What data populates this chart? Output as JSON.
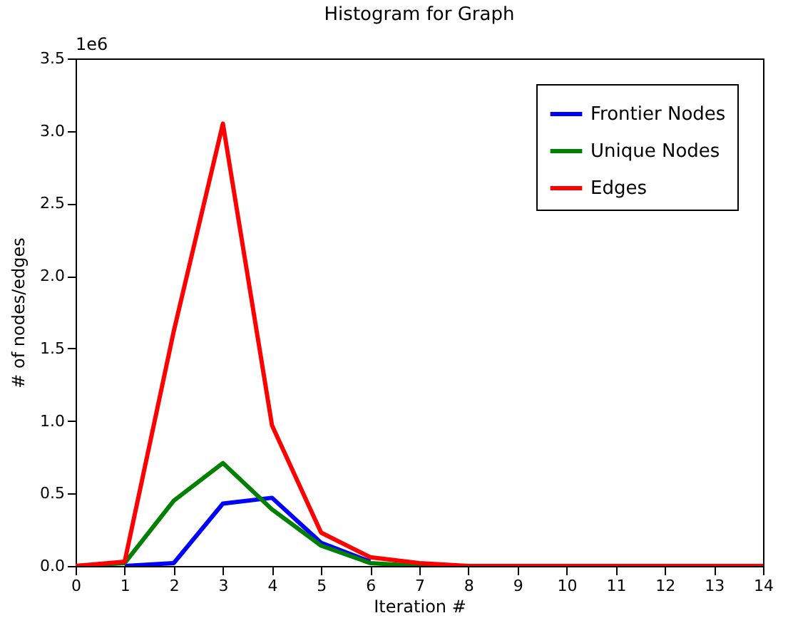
{
  "chart_data": {
    "type": "line",
    "title": "Histogram for Graph",
    "xlabel": "Iteration #",
    "ylabel": "# of nodes/edges",
    "annotations": [
      "1e6"
    ],
    "x": [
      0,
      1,
      2,
      3,
      4,
      5,
      6,
      7,
      8,
      9,
      10,
      11,
      12,
      13,
      14
    ],
    "series": [
      {
        "name": "Frontier Nodes",
        "color": "#0000ff",
        "values": [
          null,
          0,
          0.02,
          0.43,
          0.47,
          0.16,
          0.03,
          null,
          null,
          null,
          null,
          null,
          null,
          null,
          null
        ]
      },
      {
        "name": "Unique Nodes",
        "color": "#008000",
        "values": [
          0,
          0.02,
          0.45,
          0.71,
          0.39,
          0.14,
          0.02,
          0,
          0,
          null,
          null,
          null,
          null,
          null,
          null
        ]
      },
      {
        "name": "Edges",
        "color": "#ff0000",
        "values": [
          0,
          0.03,
          1.62,
          3.05,
          0.97,
          0.23,
          0.06,
          0.02,
          0,
          0,
          0,
          0,
          0,
          0,
          0
        ]
      }
    ],
    "xlim": [
      0,
      14
    ],
    "xticks": [
      0,
      1,
      2,
      3,
      4,
      5,
      6,
      7,
      8,
      9,
      10,
      11,
      12,
      13,
      14
    ],
    "ylim": [
      0,
      3.5
    ],
    "yticks": [
      {
        "value": 0,
        "label": "0.0"
      },
      {
        "value": 0.5,
        "label": "0.5"
      },
      {
        "value": 1,
        "label": "1.0"
      },
      {
        "value": 1.5,
        "label": "1.5"
      },
      {
        "value": 2,
        "label": "2.0"
      },
      {
        "value": 2.5,
        "label": "2.5"
      },
      {
        "value": 3,
        "label": "3.0"
      },
      {
        "value": 3.5,
        "label": "3.5"
      }
    ],
    "legend": "top right",
    "grid": false,
    "marker": "none",
    "line_style": "solid"
  }
}
